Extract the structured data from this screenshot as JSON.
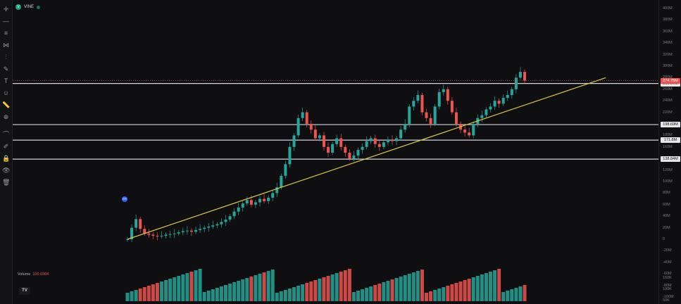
{
  "symbol": {
    "name": "VINE",
    "icon": "vine-coin-icon"
  },
  "toolbar": {
    "tools": [
      "crosshair-icon",
      "horizontal-line-icon",
      "fib-icon",
      "pattern-icon",
      "brush-icon",
      "pen-icon",
      "text-icon",
      "emoji-icon",
      "ruler-icon",
      "zoom-icon",
      "magnet-icon",
      "lock-drawing-icon",
      "lock-icon",
      "eye-icon",
      "trash-icon"
    ]
  },
  "volume": {
    "label": "Volume",
    "value": "100.696K"
  },
  "earnings_badge": "ER",
  "logo": "TV",
  "price_axis": {
    "ticks": [
      "400M",
      "380M",
      "360M",
      "340M",
      "320M",
      "300M",
      "280M",
      "260M",
      "240M",
      "220M",
      "200M",
      "180M",
      "160M",
      "140M",
      "120M",
      "100M",
      "80M",
      "60M",
      "40M",
      "20M",
      "0",
      "-20M",
      "-40M",
      "-60M",
      "-80M",
      "-100M"
    ],
    "volume_ticks": [
      "150K",
      "100K",
      "50K"
    ]
  },
  "horizontal_levels": [
    {
      "label": "269.97M",
      "value": 269.97
    },
    {
      "label": "198.69M",
      "value": 198.69
    },
    {
      "label": "171.8M",
      "value": 171.8
    },
    {
      "label": "138.84M",
      "value": 138.84
    }
  ],
  "current_price": {
    "label": "274.76M",
    "value": 274.76
  },
  "colors": {
    "up": "#26a69a",
    "down": "#ef5350",
    "trendline": "#d9c64a",
    "level": "#d1d4dc",
    "background": "#0f0f11"
  },
  "chart_data": {
    "type": "candlestick",
    "y_range": [
      -100,
      400
    ],
    "close_series_approx": [
      0,
      20,
      35,
      18,
      10,
      8,
      6,
      5,
      6,
      8,
      9,
      10,
      12,
      14,
      15,
      13,
      16,
      18,
      20,
      22,
      24,
      26,
      30,
      34,
      40,
      48,
      55,
      62,
      68,
      60,
      64,
      70,
      66,
      72,
      80,
      90,
      110,
      130,
      160,
      180,
      210,
      220,
      200,
      190,
      175,
      180,
      160,
      150,
      165,
      175,
      160,
      150,
      140,
      145,
      155,
      160,
      170,
      175,
      165,
      160,
      168,
      172,
      170,
      175,
      190,
      200,
      230,
      240,
      250,
      220,
      210,
      200,
      230,
      255,
      260,
      240,
      220,
      200,
      190,
      185,
      180,
      200,
      210,
      215,
      225,
      230,
      240,
      235,
      245,
      250,
      260,
      280,
      290,
      275
    ],
    "trendline": {
      "from": [
        0,
        0
      ],
      "to": [
        112,
        280
      ]
    }
  }
}
